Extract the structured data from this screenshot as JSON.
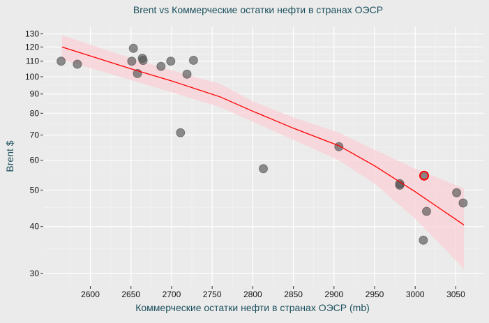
{
  "chart_data": {
    "type": "scatter",
    "title": "Brent vs Коммерческие остатки нефти в странах ОЭСР",
    "xlabel": "Коммерческие остатки нефти в странах ОЭСР (mb)",
    "ylabel": "Brent $",
    "xlim": [
      2542,
      3084
    ],
    "ylim": [
      27.8,
      136
    ],
    "yscale": "log",
    "grid": true,
    "xticks": [
      2600,
      2650,
      2700,
      2750,
      2800,
      2850,
      2900,
      2950,
      3000,
      3050
    ],
    "yticks": [
      30,
      40,
      50,
      60,
      70,
      80,
      90,
      100,
      110,
      120,
      130
    ],
    "points": [
      {
        "x": 2564,
        "y": 110
      },
      {
        "x": 2584,
        "y": 108
      },
      {
        "x": 2653,
        "y": 119
      },
      {
        "x": 2651,
        "y": 110
      },
      {
        "x": 2658,
        "y": 102
      },
      {
        "x": 2664,
        "y": 112
      },
      {
        "x": 2665,
        "y": 110.5
      },
      {
        "x": 2687,
        "y": 106.6
      },
      {
        "x": 2699,
        "y": 110
      },
      {
        "x": 2711,
        "y": 71
      },
      {
        "x": 2719,
        "y": 101.6
      },
      {
        "x": 2727,
        "y": 110.6
      },
      {
        "x": 2813,
        "y": 57
      },
      {
        "x": 2906,
        "y": 65.2
      },
      {
        "x": 2981,
        "y": 51.5
      },
      {
        "x": 2981,
        "y": 52
      },
      {
        "x": 3014,
        "y": 43.9
      },
      {
        "x": 3010,
        "y": 36.8
      },
      {
        "x": 3051,
        "y": 49.2
      },
      {
        "x": 3059,
        "y": 46.2
      }
    ],
    "highlight": {
      "x": 3011,
      "y": 54.6
    },
    "trend": {
      "x": [
        2565,
        2650,
        2700,
        2760,
        2800,
        2850,
        2906,
        2950,
        3000,
        3060
      ],
      "y": [
        120,
        105,
        97.5,
        88.4,
        81,
        73,
        65.6,
        58,
        49.5,
        40.4
      ],
      "lo": [
        111,
        98,
        91,
        83,
        76,
        68,
        60,
        52,
        42,
        30.9
      ],
      "hi": [
        129,
        112,
        104,
        95.7,
        86,
        78,
        71,
        64,
        57,
        50.5
      ]
    },
    "colors": {
      "point": "#555555",
      "trend": "#ff0000",
      "band": "#f9d0d6",
      "text": "#1b4f5c"
    }
  }
}
